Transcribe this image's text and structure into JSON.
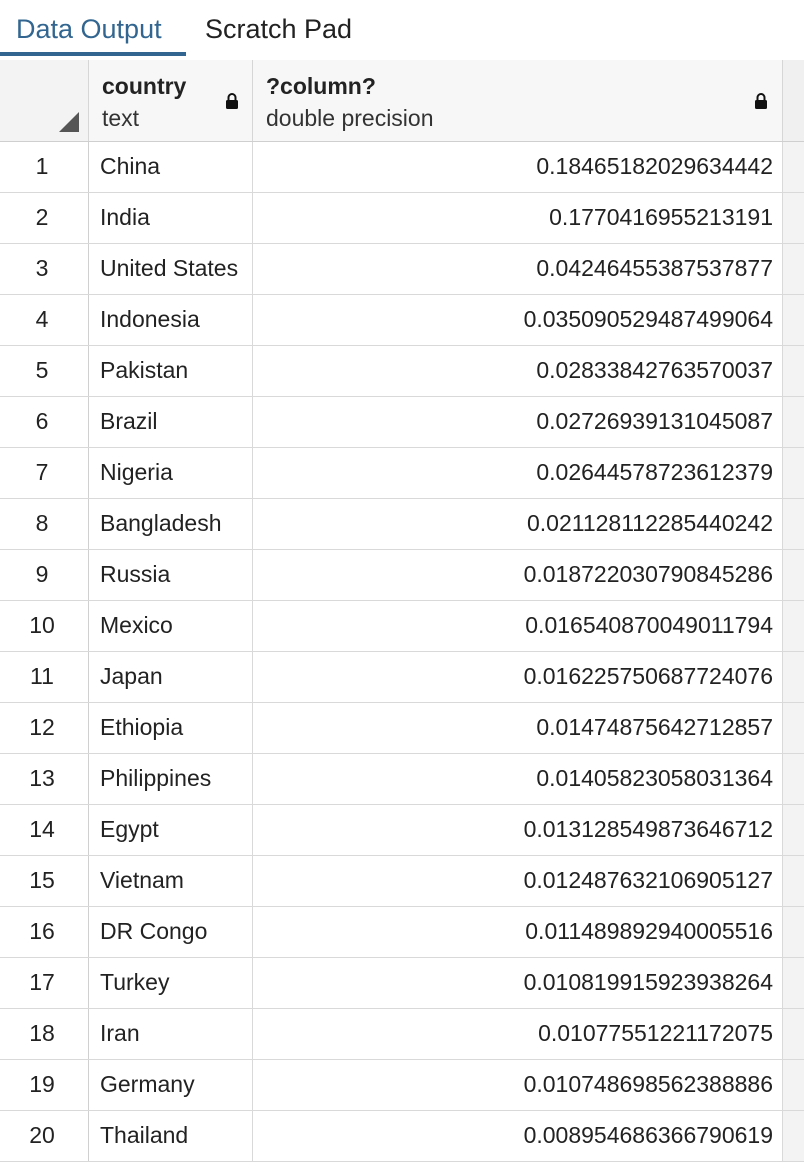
{
  "tabs": [
    {
      "label": "Data Output",
      "active": true
    },
    {
      "label": "Scratch Pad",
      "active": false
    }
  ],
  "columns": [
    {
      "name": "country",
      "type": "text"
    },
    {
      "name": "?column?",
      "type": "double precision"
    }
  ],
  "rows": [
    {
      "num": "1",
      "country": "China",
      "value": "0.18465182029634442"
    },
    {
      "num": "2",
      "country": "India",
      "value": "0.1770416955213191"
    },
    {
      "num": "3",
      "country": "United States",
      "value": "0.04246455387537877"
    },
    {
      "num": "4",
      "country": "Indonesia",
      "value": "0.035090529487499064"
    },
    {
      "num": "5",
      "country": "Pakistan",
      "value": "0.02833842763570037"
    },
    {
      "num": "6",
      "country": "Brazil",
      "value": "0.02726939131045087"
    },
    {
      "num": "7",
      "country": "Nigeria",
      "value": "0.02644578723612379"
    },
    {
      "num": "8",
      "country": "Bangladesh",
      "value": "0.021128112285440242"
    },
    {
      "num": "9",
      "country": "Russia",
      "value": "0.018722030790845286"
    },
    {
      "num": "10",
      "country": "Mexico",
      "value": "0.016540870049011794"
    },
    {
      "num": "11",
      "country": "Japan",
      "value": "0.016225750687724076"
    },
    {
      "num": "12",
      "country": "Ethiopia",
      "value": "0.01474875642712857"
    },
    {
      "num": "13",
      "country": "Philippines",
      "value": "0.01405823058031364"
    },
    {
      "num": "14",
      "country": "Egypt",
      "value": "0.013128549873646712"
    },
    {
      "num": "15",
      "country": "Vietnam",
      "value": "0.012487632106905127"
    },
    {
      "num": "16",
      "country": "DR Congo",
      "value": "0.011489892940005516"
    },
    {
      "num": "17",
      "country": "Turkey",
      "value": "0.010819915923938264"
    },
    {
      "num": "18",
      "country": "Iran",
      "value": "0.01077551221172075"
    },
    {
      "num": "19",
      "country": "Germany",
      "value": "0.010748698562388886"
    },
    {
      "num": "20",
      "country": "Thailand",
      "value": "0.008954686366790619"
    }
  ],
  "icons": {
    "lock": "lock-icon",
    "corner": "select-all-icon"
  },
  "colors": {
    "accent": "#326690"
  }
}
